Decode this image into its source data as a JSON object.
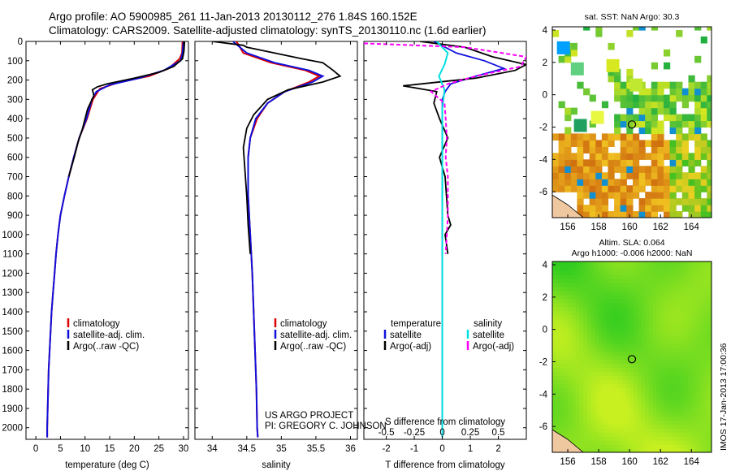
{
  "title": {
    "line1": "Argo profile: AO 5900985_261 11-Jan-2013 20130112_276 1.84S 160.152E",
    "line2": "Climatology: CARS2009. Satellite-adjusted climatology: synTS_20130110.nc (1.6d earlier)"
  },
  "project": {
    "line1": "US ARGO PROJECT",
    "line2": "PI: GREGORY C. JOHNSON"
  },
  "timestamp": "IMOS 17-Jan-2013 17:00:36",
  "colors": {
    "climatology": "#dd0000",
    "satellite": "#1010dd",
    "argo": "#000000",
    "salinity_satellite": "#00e0e0",
    "salinity_argo": "#ff00ff",
    "sst_low": "#00a0ff",
    "sst_high": "#e08020",
    "sla_field": "#40d820"
  },
  "chart_data": [
    {
      "type": "line",
      "name": "temperature-profile",
      "xlabel": "temperature (deg C)",
      "ylabel": "",
      "xlim": [
        -2,
        31
      ],
      "ylim": [
        2060,
        0
      ],
      "xticks": [
        0,
        5,
        10,
        15,
        20,
        25,
        30
      ],
      "yticks": [
        0,
        100,
        200,
        300,
        400,
        500,
        600,
        700,
        800,
        900,
        1000,
        1100,
        1200,
        1300,
        1400,
        1500,
        1600,
        1700,
        1800,
        1900,
        2000
      ],
      "legend": [
        "climatology",
        "satellite-adj. clim.",
        "Argo(..raw -QC)"
      ],
      "series": [
        {
          "name": "climatology",
          "color": "#dd0000",
          "points": [
            [
              29.8,
              0
            ],
            [
              29.7,
              60
            ],
            [
              29.2,
              90
            ],
            [
              27,
              140
            ],
            [
              23,
              180
            ],
            [
              17,
              210
            ],
            [
              13,
              245
            ],
            [
              11.6,
              300
            ],
            [
              10.4,
              400
            ],
            [
              8.8,
              500
            ],
            [
              7.7,
              600
            ],
            [
              6.7,
              700
            ],
            [
              5.8,
              800
            ],
            [
              5.0,
              900
            ],
            [
              4.5,
              1000
            ],
            [
              4.1,
              1100
            ],
            [
              3.8,
              1200
            ],
            [
              3.5,
              1300
            ],
            [
              3.2,
              1400
            ],
            [
              3.0,
              1500
            ],
            [
              2.8,
              1600
            ],
            [
              2.6,
              1700
            ],
            [
              2.5,
              1800
            ],
            [
              2.4,
              1900
            ],
            [
              2.3,
              2000
            ],
            [
              2.3,
              2050
            ]
          ]
        },
        {
          "name": "satellite-adj. clim.",
          "color": "#1010dd",
          "points": [
            [
              30.0,
              0
            ],
            [
              29.8,
              60
            ],
            [
              29.4,
              100
            ],
            [
              26,
              150
            ],
            [
              21,
              190
            ],
            [
              15,
              225
            ],
            [
              12.3,
              260
            ],
            [
              11.4,
              300
            ],
            [
              10.3,
              400
            ],
            [
              8.8,
              500
            ],
            [
              7.7,
              600
            ],
            [
              6.7,
              700
            ],
            [
              5.8,
              800
            ],
            [
              5.0,
              900
            ],
            [
              4.5,
              1000
            ],
            [
              4.1,
              1100
            ],
            [
              3.8,
              1200
            ],
            [
              3.5,
              1300
            ],
            [
              3.2,
              1400
            ],
            [
              3.0,
              1500
            ],
            [
              2.8,
              1600
            ],
            [
              2.6,
              1700
            ],
            [
              2.5,
              1800
            ],
            [
              2.4,
              1900
            ],
            [
              2.3,
              2000
            ],
            [
              2.3,
              2050
            ]
          ]
        },
        {
          "name": "Argo(..raw -QC)",
          "color": "#000000",
          "points": [
            [
              30.2,
              0
            ],
            [
              30.1,
              50
            ],
            [
              29.8,
              90
            ],
            [
              28,
              130
            ],
            [
              25,
              160
            ],
            [
              20,
              190
            ],
            [
              14.5,
              220
            ],
            [
              12.5,
              235
            ],
            [
              11.5,
              250
            ],
            [
              11.8,
              280
            ],
            [
              10.5,
              350
            ],
            [
              9.5,
              450
            ],
            [
              8.6,
              520
            ],
            [
              7.8,
              600
            ],
            [
              6.7,
              700
            ]
          ]
        }
      ]
    },
    {
      "type": "line",
      "name": "salinity-profile",
      "xlabel": "salinity",
      "ylabel": "",
      "xlim": [
        33.75,
        36.1
      ],
      "ylim": [
        2060,
        0
      ],
      "xticks": [
        34,
        34.5,
        35,
        35.5,
        36
      ],
      "legend": [
        "climatology",
        "satellite-adj. clim.",
        "Argo(..raw -QC)"
      ],
      "series": [
        {
          "name": "climatology",
          "color": "#dd0000",
          "points": [
            [
              34.35,
              0
            ],
            [
              34.45,
              60
            ],
            [
              34.85,
              110
            ],
            [
              35.35,
              150
            ],
            [
              35.55,
              180
            ],
            [
              35.4,
              210
            ],
            [
              35.05,
              260
            ],
            [
              34.8,
              320
            ],
            [
              34.65,
              400
            ],
            [
              34.55,
              500
            ],
            [
              34.52,
              600
            ],
            [
              34.52,
              800
            ],
            [
              34.55,
              1000
            ],
            [
              34.58,
              1200
            ],
            [
              34.6,
              1400
            ],
            [
              34.62,
              1600
            ],
            [
              34.64,
              1800
            ],
            [
              34.65,
              2000
            ],
            [
              34.66,
              2050
            ]
          ]
        },
        {
          "name": "satellite-adj. clim.",
          "color": "#1010dd",
          "points": [
            [
              34.3,
              0
            ],
            [
              34.5,
              60
            ],
            [
              34.9,
              110
            ],
            [
              35.4,
              150
            ],
            [
              35.6,
              180
            ],
            [
              35.45,
              210
            ],
            [
              35.05,
              260
            ],
            [
              34.8,
              320
            ],
            [
              34.63,
              400
            ],
            [
              34.55,
              500
            ],
            [
              34.52,
              600
            ],
            [
              34.52,
              800
            ],
            [
              34.55,
              1000
            ],
            [
              34.58,
              1200
            ],
            [
              34.6,
              1400
            ],
            [
              34.62,
              1600
            ],
            [
              34.64,
              1800
            ],
            [
              34.65,
              2000
            ],
            [
              34.66,
              2050
            ]
          ]
        },
        {
          "name": "Argo(..raw -QC)",
          "color": "#000000",
          "points": [
            [
              34.0,
              0
            ],
            [
              34.45,
              20
            ],
            [
              34.5,
              30
            ],
            [
              34.9,
              60
            ],
            [
              35.3,
              90
            ],
            [
              35.6,
              110
            ],
            [
              35.75,
              150
            ],
            [
              35.85,
              180
            ],
            [
              35.6,
              210
            ],
            [
              35.1,
              250
            ],
            [
              34.8,
              300
            ],
            [
              34.6,
              380
            ],
            [
              34.5,
              450
            ],
            [
              34.45,
              550
            ],
            [
              34.47,
              650
            ],
            [
              34.5,
              800
            ],
            [
              34.52,
              950
            ],
            [
              34.55,
              1100
            ]
          ]
        }
      ]
    },
    {
      "type": "line",
      "name": "difference-profile",
      "xlabel": "T difference from climatology",
      "xlabel2": "S difference from climatology",
      "xlim": [
        -2.8,
        3
      ],
      "xlim2": [
        -0.7,
        0.75
      ],
      "ylim": [
        2060,
        0
      ],
      "xticks": [
        -2,
        -1,
        0,
        1,
        2
      ],
      "xticks2": [
        -0.5,
        -0.25,
        0,
        0.25,
        0.5
      ],
      "legend_temperature": {
        "heading": "temperature",
        "entries": [
          "satellite",
          "Argo(-adj)"
        ]
      },
      "legend_salinity": {
        "heading": "salinity",
        "entries": [
          "satellite",
          "Argo(-adj)"
        ]
      },
      "series": [
        {
          "name": "temperature satellite",
          "color": "#1010dd",
          "points": [
            [
              -0.3,
              0
            ],
            [
              0.5,
              60
            ],
            [
              1.5,
              100
            ],
            [
              2.2,
              140
            ],
            [
              1.2,
              180
            ],
            [
              0.3,
              220
            ],
            [
              0.1,
              260
            ],
            [
              0,
              300
            ],
            [
              0,
              2050
            ]
          ]
        },
        {
          "name": "temperature Argo(-adj)",
          "color": "#000000",
          "points": [
            [
              -0.8,
              0
            ],
            [
              0.8,
              30
            ],
            [
              1.8,
              80
            ],
            [
              3,
              120
            ],
            [
              2.6,
              150
            ],
            [
              1.2,
              190
            ],
            [
              -1.4,
              230
            ],
            [
              -0.2,
              260
            ],
            [
              -0.3,
              320
            ],
            [
              -0.1,
              400
            ],
            [
              0.2,
              500
            ],
            [
              -0.1,
              600
            ],
            [
              0.1,
              700
            ],
            [
              0.2,
              900
            ],
            [
              0.3,
              950
            ],
            [
              0.1,
              1000
            ],
            [
              0.2,
              1100
            ]
          ]
        },
        {
          "name": "salinity satellite",
          "color": "#00e0e0",
          "points": [
            [
              -0.05,
              0
            ],
            [
              0.05,
              60
            ],
            [
              0.02,
              120
            ],
            [
              -0.03,
              180
            ],
            [
              0.02,
              250
            ],
            [
              0,
              350
            ],
            [
              0,
              2050
            ]
          ]
        },
        {
          "name": "salinity Argo(-adj)",
          "color": "#ff00ff",
          "points": [
            [
              -0.7,
              10
            ],
            [
              0.2,
              30
            ],
            [
              0.75,
              80
            ],
            [
              0.7,
              130
            ],
            [
              0.3,
              180
            ],
            [
              0.05,
              220
            ],
            [
              -0.1,
              260
            ],
            [
              0.02,
              320
            ],
            [
              0.03,
              400
            ],
            [
              0.04,
              500
            ],
            [
              0.03,
              600
            ],
            [
              0.05,
              700
            ],
            [
              0.05,
              900
            ],
            [
              0.04,
              1000
            ],
            [
              0.03,
              1100
            ]
          ]
        }
      ]
    },
    {
      "type": "heatmap",
      "name": "sst-map",
      "title": "sat. SST: NaN Argo: 30.3",
      "xlim": [
        155,
        165.3
      ],
      "ylim": [
        -7.6,
        4.2
      ],
      "xticks": [
        156,
        158,
        160,
        162,
        164
      ],
      "yticks": [
        4,
        2,
        0,
        -2,
        -4,
        -6
      ],
      "marker": {
        "lon": 160.15,
        "lat": -1.84
      }
    },
    {
      "type": "heatmap",
      "name": "sla-map",
      "title_line1": "Altim. SLA: 0.064",
      "title_line2": "Argo h1000: -0.006 h2000: NaN",
      "xlim": [
        155,
        165.3
      ],
      "ylim": [
        -7.6,
        4.2
      ],
      "xticks": [
        156,
        158,
        160,
        162,
        164
      ],
      "yticks": [
        4,
        2,
        0,
        -2,
        -4,
        -6
      ],
      "marker": {
        "lon": 160.15,
        "lat": -1.84
      }
    }
  ]
}
